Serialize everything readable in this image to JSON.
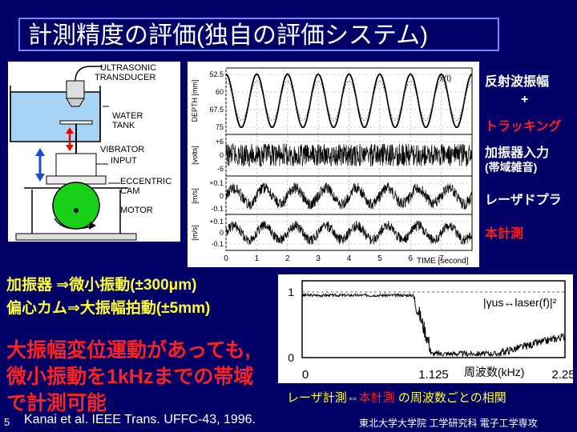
{
  "title": "計測精度の評価(独自の評価システム)",
  "apparatus": {
    "ultrasonic": "ULTRASONIC",
    "transducer": "TRANSDUCER",
    "water": "WATER",
    "tank": "TANK",
    "vibrator": "VIBRATOR",
    "input": "INPUT",
    "eccentric": "ECCENTRIC",
    "cam": "CAM",
    "motor": "MOTOR"
  },
  "waveforms": {
    "ylabels": [
      "DEPTH [mm]",
      "[volts]",
      "[m/s]",
      "[m/s]"
    ],
    "depth_ticks": [
      "52.5",
      "60",
      "67.5",
      "75"
    ],
    "volt_ticks": [
      "+6",
      "0",
      "-6"
    ],
    "v1_ticks": [
      "+0.1",
      "0",
      "-0.1"
    ],
    "v2_ticks": [
      "+0.1",
      "0",
      "-0.1"
    ],
    "x_ticks": [
      "0",
      "1",
      "2",
      "3",
      "4",
      "5",
      "6",
      "7"
    ],
    "xlabel": "TIME [second]",
    "annotation": "x̂(t)"
  },
  "right_labels": {
    "l1": "反射波振幅",
    "l2": "+",
    "l3": "トラッキング",
    "l4": "加振器入力",
    "l5": "(帯域雑音)",
    "l6": "レーザドプラ",
    "l7": "本計測"
  },
  "left_notes": {
    "line1": "加振器 ⇒微小振動(±300μm)",
    "line2": "偏心カム⇒大振幅拍動(±5mm)"
  },
  "conclusion": {
    "line1": "大振幅変位運動があっても,",
    "line2": "微小振動を1kHzまでの帯域",
    "line3": "で計測可能"
  },
  "coherence": {
    "y_ticks": [
      "1",
      "0"
    ],
    "x_ticks": [
      "0",
      "1.125",
      "2.25"
    ],
    "xlabel": "周波数(kHz)",
    "formula": "|γus↔laser(f)|²",
    "caption_part1": "レーザ計測⇔",
    "caption_part2": "本計測",
    "caption_part3": " の周波数ごとの相関"
  },
  "citation": "Kanai et al. IEEE Trans. UFFC-43, 1996.",
  "slide_number": "5",
  "affiliation": "東北大学大学院 工学研究科 電子工学専攻",
  "colors": {
    "background": "#000066",
    "yellow": "#ffff33",
    "red": "#ff2020"
  }
}
